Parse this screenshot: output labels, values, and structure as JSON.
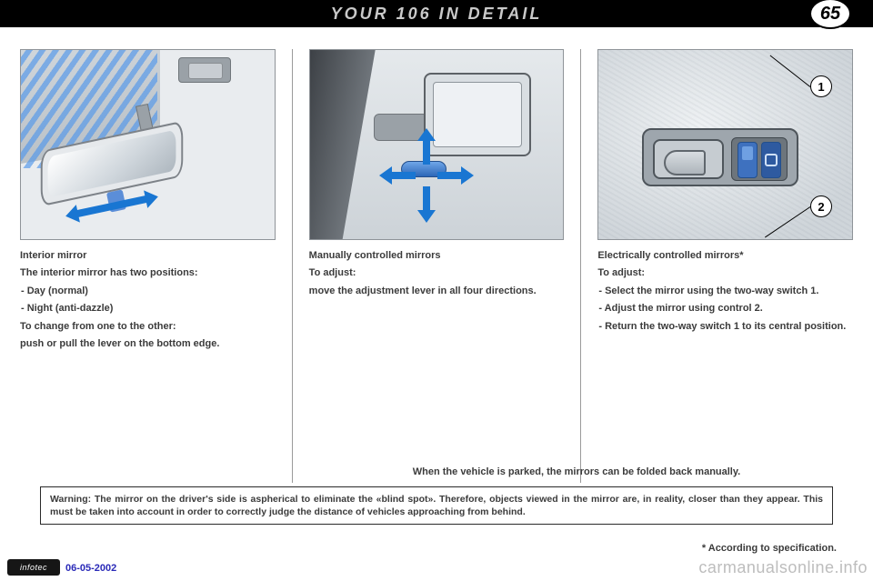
{
  "header": {
    "title": "YOUR 106 IN DETAIL",
    "page_number": "65"
  },
  "colors": {
    "header_bg": "#000000",
    "header_text": "#c9c9c9",
    "body_text": "#3b3b3b",
    "accent_blue": "#1976d2",
    "date_blue": "#2a2ab8",
    "watermark": "#bdbdbd",
    "illus_bg": "#e9ecef",
    "illus_border": "#8f9499"
  },
  "columns": {
    "interior": {
      "heading": "Interior mirror",
      "p1": "The interior mirror has two positions:",
      "li1": "-  Day (normal)",
      "li2": "-  Night (anti-dazzle)",
      "p2": "To change from one to the other:",
      "p3": "push or pull the lever on the bottom edge."
    },
    "manual": {
      "heading": "Manually controlled mirrors",
      "p1": "To adjust:",
      "p2": "move the adjustment lever in all four directions."
    },
    "electric": {
      "heading": "Electrically controlled mirrors*",
      "p1": "To adjust:",
      "li1": "-  Select the mirror using the two-way switch 1.",
      "li2": "-  Adjust the mirror using control 2.",
      "li3": "-  Return the two-way switch 1 to its central position.",
      "callout1": "1",
      "callout2": "2"
    }
  },
  "fold_note": "When the vehicle is parked, the mirrors can be folded back manually.",
  "warning": "Warning: The mirror on the driver's side is aspherical to eliminate the «blind spot». Therefore, objects viewed in the mirror are, in reality, closer than they appear. This must be taken into account in order to correctly judge the distance of vehicles approaching from behind.",
  "footer": {
    "info_badge": "infotec",
    "date": "06-05-2002",
    "spec_note": "* According to specification.",
    "watermark": "carmanualsonline.info"
  }
}
